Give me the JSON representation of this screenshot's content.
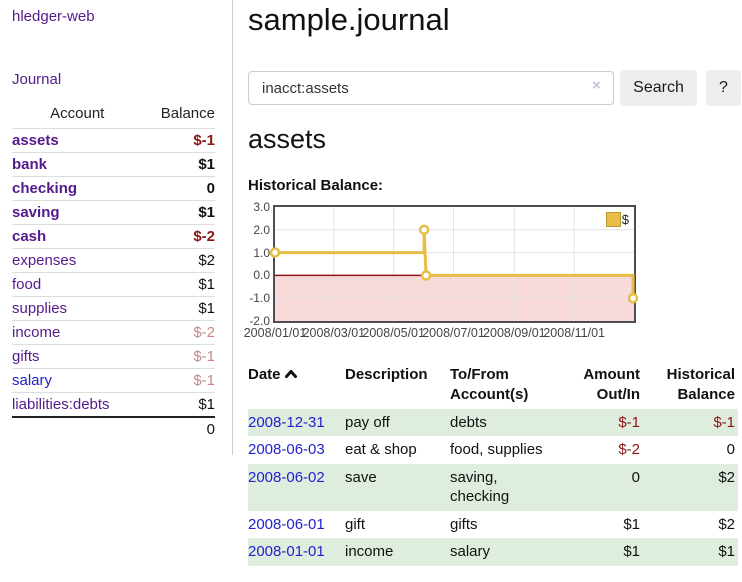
{
  "sidebar": {
    "brand": "hledger-web",
    "nav_journal": "Journal",
    "accounts_table": {
      "headers": [
        "Account",
        "Balance"
      ],
      "rows": [
        {
          "name": "assets",
          "depth": 1,
          "bold": true,
          "balance": "$-1"
        },
        {
          "name": "bank",
          "depth": 2,
          "bold": true,
          "balance": "$1"
        },
        {
          "name": "checking",
          "depth": 3,
          "bold": true,
          "balance": "0"
        },
        {
          "name": "saving",
          "depth": 3,
          "bold": true,
          "balance": "$1"
        },
        {
          "name": "cash",
          "depth": 2,
          "bold": true,
          "balance": "$-2"
        },
        {
          "name": "expenses",
          "depth": 1,
          "bold": false,
          "balance": "$2"
        },
        {
          "name": "food",
          "depth": 2,
          "bold": false,
          "balance": "$1"
        },
        {
          "name": "supplies",
          "depth": 2,
          "bold": false,
          "balance": "$1"
        },
        {
          "name": "income",
          "depth": 1,
          "bold": false,
          "balance": "$-2"
        },
        {
          "name": "gifts",
          "depth": 2,
          "bold": false,
          "balance": "$-1"
        },
        {
          "name": "salary",
          "depth": 2,
          "bold": false,
          "unvisited": true,
          "balance": "$-1"
        },
        {
          "name": "liabilities:debts",
          "depth": 1,
          "bold": false,
          "balance": "$1"
        }
      ],
      "total": "0"
    }
  },
  "main": {
    "title": "sample.journal",
    "search": {
      "value": "inacct:assets",
      "clear_icon": "×",
      "button_label": "Search",
      "help_label": "?"
    },
    "account_heading": "assets",
    "register_table": {
      "headers": [
        "Date",
        "Description",
        "To/From Account(s)",
        "Amount Out/In",
        "Historical Balance"
      ],
      "rows": [
        {
          "date": "2008-12-31",
          "description": "pay off",
          "accounts": "debts",
          "amount": "$-1",
          "balance": "$-1"
        },
        {
          "date": "2008-06-03",
          "description": "eat & shop",
          "accounts": "food, supplies",
          "amount": "$-2",
          "balance": "0"
        },
        {
          "date": "2008-06-02",
          "description": "save",
          "accounts": "saving, checking",
          "amount": "0",
          "balance": "$2"
        },
        {
          "date": "2008-06-01",
          "description": "gift",
          "accounts": "gifts",
          "amount": "$1",
          "balance": "$2"
        },
        {
          "date": "2008-01-01",
          "description": "income",
          "accounts": "salary",
          "amount": "$1",
          "balance": "$1"
        }
      ]
    }
  },
  "chart_data": {
    "type": "line",
    "style": "step",
    "title": "Historical Balance:",
    "legend": [
      {
        "label": "$",
        "color": "#E8BD45"
      }
    ],
    "legend_position": "top-right",
    "grid": true,
    "ylim": [
      -2.0,
      3.0
    ],
    "ytick_labels": [
      "3.0",
      "2.0",
      "1.0",
      "0.0",
      "-1.0",
      "-2.0"
    ],
    "ytick_values": [
      3,
      2,
      1,
      0,
      -1,
      -2
    ],
    "xtick_labels": [
      "2008/01/01",
      "2008/03/01",
      "2008/05/01",
      "2008/07/01",
      "2008/09/01",
      "2008/11/01"
    ],
    "xtick_day_offsets": [
      0,
      60,
      121,
      182,
      244,
      305
    ],
    "x_domain_day_offsets": [
      0,
      366
    ],
    "series": [
      {
        "name": "$",
        "points": [
          {
            "date": "2008-01-01",
            "value": 1
          },
          {
            "date": "2008-06-01",
            "value": 1
          },
          {
            "date": "2008-06-01",
            "value": 2
          },
          {
            "date": "2008-06-03",
            "value": 0
          },
          {
            "date": "2008-12-31",
            "value": 0
          },
          {
            "date": "2008-12-31",
            "value": -1
          }
        ],
        "points_day_offsets": [
          [
            0,
            1
          ],
          [
            152,
            1
          ],
          [
            152,
            2
          ],
          [
            154,
            0
          ],
          [
            365,
            0
          ],
          [
            365,
            -1
          ]
        ],
        "marker_day_offsets": [
          [
            0,
            1
          ],
          [
            152,
            2
          ],
          [
            154,
            0
          ],
          [
            365,
            -1
          ]
        ]
      }
    ],
    "colors": {
      "line": "#E8BD45",
      "marker_fill": "#ffffff",
      "negative_region_fill": "#F9DADA",
      "zero_line": "#8E1515",
      "gridline": "#E3E3E3",
      "plot_border": "#4D4D4D"
    }
  }
}
